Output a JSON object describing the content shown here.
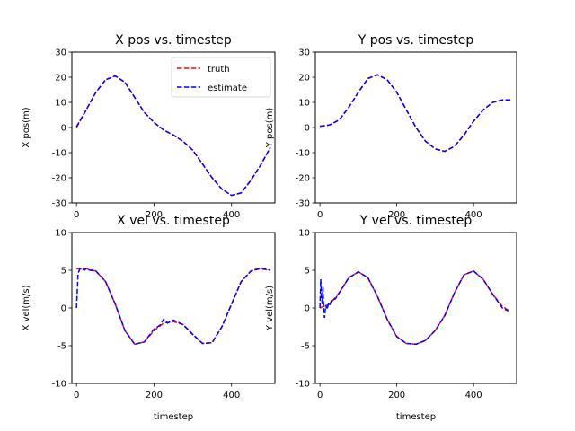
{
  "chart_data": [
    {
      "type": "line",
      "title": "X pos vs. timestep",
      "xlabel": "",
      "ylabel": "X pos(m)",
      "xlim": [
        -12,
        512
      ],
      "ylim": [
        -30,
        30
      ],
      "xticks": [
        0,
        200,
        400
      ],
      "yticks": [
        -30,
        -20,
        -10,
        0,
        10,
        20,
        30
      ],
      "grid": false,
      "legend": "top-right",
      "series": [
        {
          "name": "truth",
          "color": "#ff0000",
          "style": "dashed",
          "x": [
            0,
            25,
            50,
            75,
            100,
            125,
            150,
            175,
            200,
            225,
            250,
            275,
            300,
            325,
            350,
            375,
            400,
            425,
            450,
            475,
            500
          ],
          "y": [
            0,
            7,
            14,
            19,
            20.5,
            18,
            12,
            6,
            2,
            -1,
            -3,
            -5.5,
            -9,
            -14.5,
            -20,
            -24.5,
            -27,
            -26,
            -21,
            -15,
            -8
          ]
        },
        {
          "name": "estimate",
          "color": "#0000ff",
          "style": "dashed",
          "x": [
            0,
            25,
            50,
            75,
            100,
            125,
            150,
            175,
            200,
            225,
            250,
            275,
            300,
            325,
            350,
            375,
            400,
            425,
            450,
            475,
            500
          ],
          "y": [
            0.3,
            7,
            14,
            19,
            20.5,
            18,
            12,
            6,
            2,
            -1,
            -3,
            -5.5,
            -9,
            -14.5,
            -20,
            -24.5,
            -27,
            -26,
            -21,
            -15,
            -8
          ]
        }
      ]
    },
    {
      "type": "line",
      "title": "Y pos vs. timestep",
      "xlabel": "",
      "ylabel": "Y pos(m)",
      "xlim": [
        -12,
        512
      ],
      "ylim": [
        -30,
        30
      ],
      "xticks": [
        0,
        200,
        400
      ],
      "yticks": [
        -30,
        -20,
        -10,
        0,
        10,
        20,
        30
      ],
      "grid": false,
      "series": [
        {
          "name": "truth",
          "color": "#ff0000",
          "style": "dashed",
          "x": [
            0,
            25,
            50,
            75,
            100,
            125,
            150,
            175,
            200,
            225,
            250,
            275,
            300,
            325,
            350,
            375,
            400,
            425,
            450,
            475,
            500
          ],
          "y": [
            0.5,
            1,
            3,
            8,
            14,
            19.5,
            21,
            19,
            14,
            7,
            0,
            -5.5,
            -8.5,
            -9.5,
            -7.5,
            -3,
            2.5,
            7,
            10,
            11,
            11
          ]
        },
        {
          "name": "estimate",
          "color": "#0000ff",
          "style": "dashed",
          "x": [
            0,
            25,
            50,
            75,
            100,
            125,
            150,
            175,
            200,
            225,
            250,
            275,
            300,
            325,
            350,
            375,
            400,
            425,
            450,
            475,
            500
          ],
          "y": [
            0.5,
            1,
            3,
            8,
            14,
            19.5,
            21,
            19,
            14,
            7,
            0,
            -5.5,
            -8.5,
            -9.5,
            -7.5,
            -3,
            2.5,
            7,
            10,
            11,
            11
          ]
        }
      ]
    },
    {
      "type": "line",
      "title": "X vel vs. timestep",
      "xlabel": "timestep",
      "ylabel": "X vel(m/s)",
      "xlim": [
        -12,
        512
      ],
      "ylim": [
        -10,
        10
      ],
      "xticks": [
        0,
        200,
        400
      ],
      "yticks": [
        -10,
        -5,
        0,
        5,
        10
      ],
      "grid": false,
      "series": [
        {
          "name": "truth",
          "color": "#ff0000",
          "style": "dashed",
          "x": [
            0,
            25,
            50,
            75,
            100,
            125,
            150,
            175,
            200,
            225,
            250,
            275,
            300,
            325,
            350,
            375,
            400,
            425,
            450,
            475,
            500
          ],
          "y": [
            5.2,
            5.2,
            4.9,
            3.5,
            0.5,
            -3,
            -4.8,
            -4.5,
            -3,
            -2,
            -1.8,
            -2.2,
            -3.5,
            -4.7,
            -4.6,
            -2.5,
            0.5,
            3.5,
            4.9,
            5.2,
            5.0
          ]
        },
        {
          "name": "estimate",
          "color": "#0000ff",
          "style": "dashed",
          "x": [
            0,
            4,
            8,
            12,
            20,
            25,
            35,
            50,
            75,
            100,
            125,
            150,
            175,
            200,
            215,
            225,
            235,
            250,
            275,
            300,
            325,
            350,
            375,
            400,
            425,
            450,
            475,
            500
          ],
          "y": [
            0,
            4.6,
            5.1,
            5.3,
            5.0,
            5.2,
            5.0,
            4.9,
            3.5,
            0.5,
            -3,
            -4.8,
            -4.5,
            -2.8,
            -2.3,
            -1.5,
            -2.0,
            -1.6,
            -2.2,
            -3.5,
            -4.7,
            -4.6,
            -2.5,
            0.5,
            3.5,
            4.9,
            5.3,
            5.0
          ]
        }
      ]
    },
    {
      "type": "line",
      "title": "Y vel vs. timestep",
      "xlabel": "timestep",
      "ylabel": "Y vel(m/s)",
      "xlim": [
        -12,
        512
      ],
      "ylim": [
        -10,
        10
      ],
      "xticks": [
        0,
        200,
        400
      ],
      "yticks": [
        -10,
        -5,
        0,
        5,
        10
      ],
      "grid": false,
      "series": [
        {
          "name": "truth",
          "color": "#ff0000",
          "style": "dashed",
          "x": [
            0,
            25,
            50,
            75,
            100,
            125,
            150,
            175,
            200,
            225,
            250,
            275,
            300,
            325,
            350,
            375,
            400,
            425,
            450,
            475,
            490
          ],
          "y": [
            0,
            0.5,
            2,
            4,
            4.8,
            4,
            1.5,
            -1.5,
            -3.8,
            -4.7,
            -4.8,
            -4.3,
            -3,
            -1,
            2,
            4.4,
            4.9,
            3.8,
            1.8,
            0.2,
            -0.3
          ]
        },
        {
          "name": "estimate",
          "color": "#0000ff",
          "style": "dashed",
          "x": [
            0,
            2,
            4,
            6,
            8,
            10,
            12,
            15,
            18,
            22,
            25,
            30,
            40,
            50,
            75,
            100,
            125,
            150,
            175,
            200,
            225,
            250,
            275,
            300,
            325,
            350,
            375,
            400,
            425,
            450,
            475,
            490
          ],
          "y": [
            0,
            3.8,
            1.5,
            0.5,
            2.8,
            -0.5,
            -1.3,
            0.4,
            -0.2,
            0.5,
            0.3,
            1,
            1.2,
            2,
            4,
            4.8,
            4,
            1.5,
            -1.5,
            -3.8,
            -4.7,
            -4.8,
            -4.3,
            -3,
            -1,
            2,
            4.4,
            4.9,
            3.8,
            1.8,
            0,
            -0.4
          ]
        }
      ]
    }
  ]
}
